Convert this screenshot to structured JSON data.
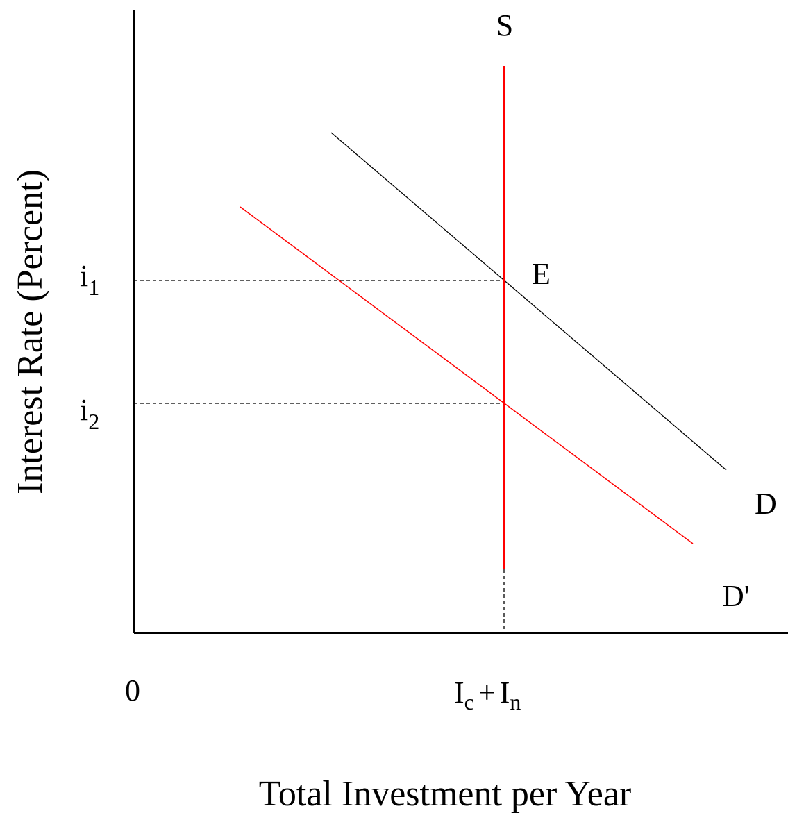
{
  "diagram": {
    "axes": {
      "y_label": "Interest Rate (Percent)",
      "x_label": "Total Investment per Year",
      "origin_label": "0"
    },
    "ticks": {
      "i1": {
        "base": "i",
        "sub": "1"
      },
      "i2": {
        "base": "i",
        "sub": "2"
      },
      "quantity": {
        "term1": "I",
        "sub1": "c",
        "plus": "+",
        "term2": "I",
        "sub2": "n"
      }
    },
    "curves": {
      "supply": {
        "label": "S",
        "color": "#ff0000"
      },
      "demand": {
        "label": "D",
        "color": "#000000"
      },
      "demand_shifted": {
        "label": "D'",
        "color": "#ff0000"
      }
    },
    "points": {
      "equilibrium": {
        "label": "E"
      }
    }
  }
}
